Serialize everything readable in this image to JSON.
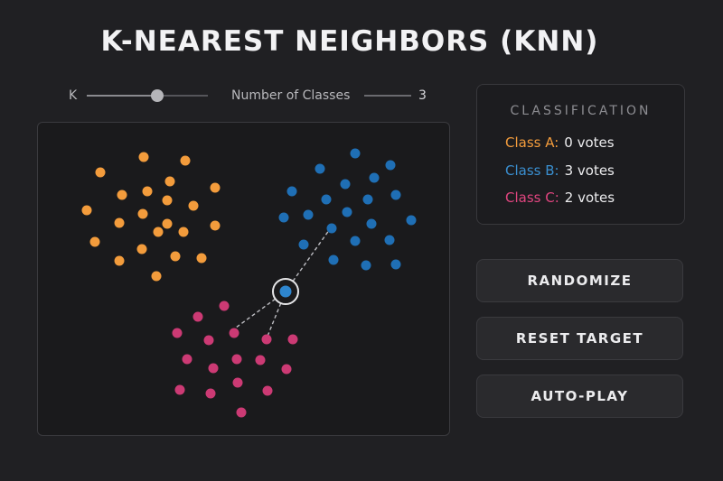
{
  "title": "K-NEAREST NEIGHBORS (KNN)",
  "controls": {
    "k_label": "K",
    "k_slider_value": 0.58,
    "classes_label": "Number of Classes",
    "classes_value": "3"
  },
  "classification": {
    "heading": "CLASSIFICATION",
    "rows": [
      {
        "label": "Class A:",
        "votes": "0 votes",
        "color": "#f39c3c"
      },
      {
        "label": "Class B:",
        "votes": "3 votes",
        "color": "#3a8fd0"
      },
      {
        "label": "Class C:",
        "votes": "2 votes",
        "color": "#e0457f"
      }
    ]
  },
  "buttons": {
    "randomize": "RANDOMIZE",
    "reset_target": "RESET TARGET",
    "auto_play": "AUTO-PLAY"
  },
  "colors": {
    "class_a": "#f39c3c",
    "class_b": "#1f6fb5",
    "class_c": "#cc3a74",
    "target": "#2e86cf"
  }
}
